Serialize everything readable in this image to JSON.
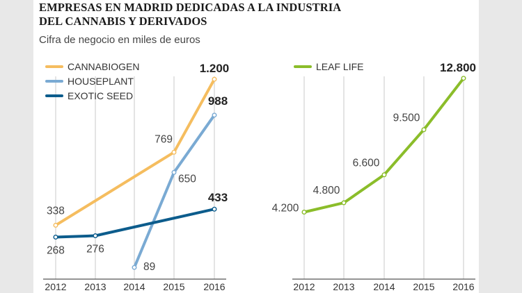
{
  "title_line1": "EMPRESAS EN MADRID DEDICADAS A LA INDUSTRIA",
  "title_line2": "DEL CANNABIS Y DERIVADOS",
  "subtitle": "Cifra de negocio en miles de euros",
  "chart_data": [
    {
      "type": "line",
      "x": [
        "2012",
        "2013",
        "2014",
        "2015",
        "2016"
      ],
      "series": [
        {
          "name": "CANNABIOGEN",
          "color": "#f5bd5f",
          "values": [
            338,
            null,
            null,
            769,
            1200
          ],
          "labels": [
            "338",
            null,
            null,
            "769",
            "1.200"
          ]
        },
        {
          "name": "HOUSEPLANT",
          "color": "#7aaad3",
          "values": [
            null,
            null,
            89,
            650,
            988
          ],
          "labels": [
            null,
            null,
            "89",
            "650",
            "988"
          ]
        },
        {
          "name": "EXOTIC SEED",
          "color": "#0c5c8c",
          "values": [
            268,
            276,
            null,
            null,
            433
          ],
          "labels": [
            "268",
            "276",
            null,
            null,
            "433"
          ]
        }
      ],
      "bold_last_label": true,
      "legend": "top-left",
      "grid": "vertical"
    },
    {
      "type": "line",
      "x": [
        "2012",
        "2013",
        "2014",
        "2015",
        "2016"
      ],
      "series": [
        {
          "name": "LEAF LIFE",
          "color": "#8bbd2a",
          "values": [
            4200,
            4800,
            6600,
            9500,
            12800
          ],
          "labels": [
            "4.200",
            "4.800",
            "6.600",
            "9.500",
            "12.800"
          ]
        }
      ],
      "bold_last_label": true,
      "legend": "top-left",
      "grid": "vertical"
    }
  ]
}
